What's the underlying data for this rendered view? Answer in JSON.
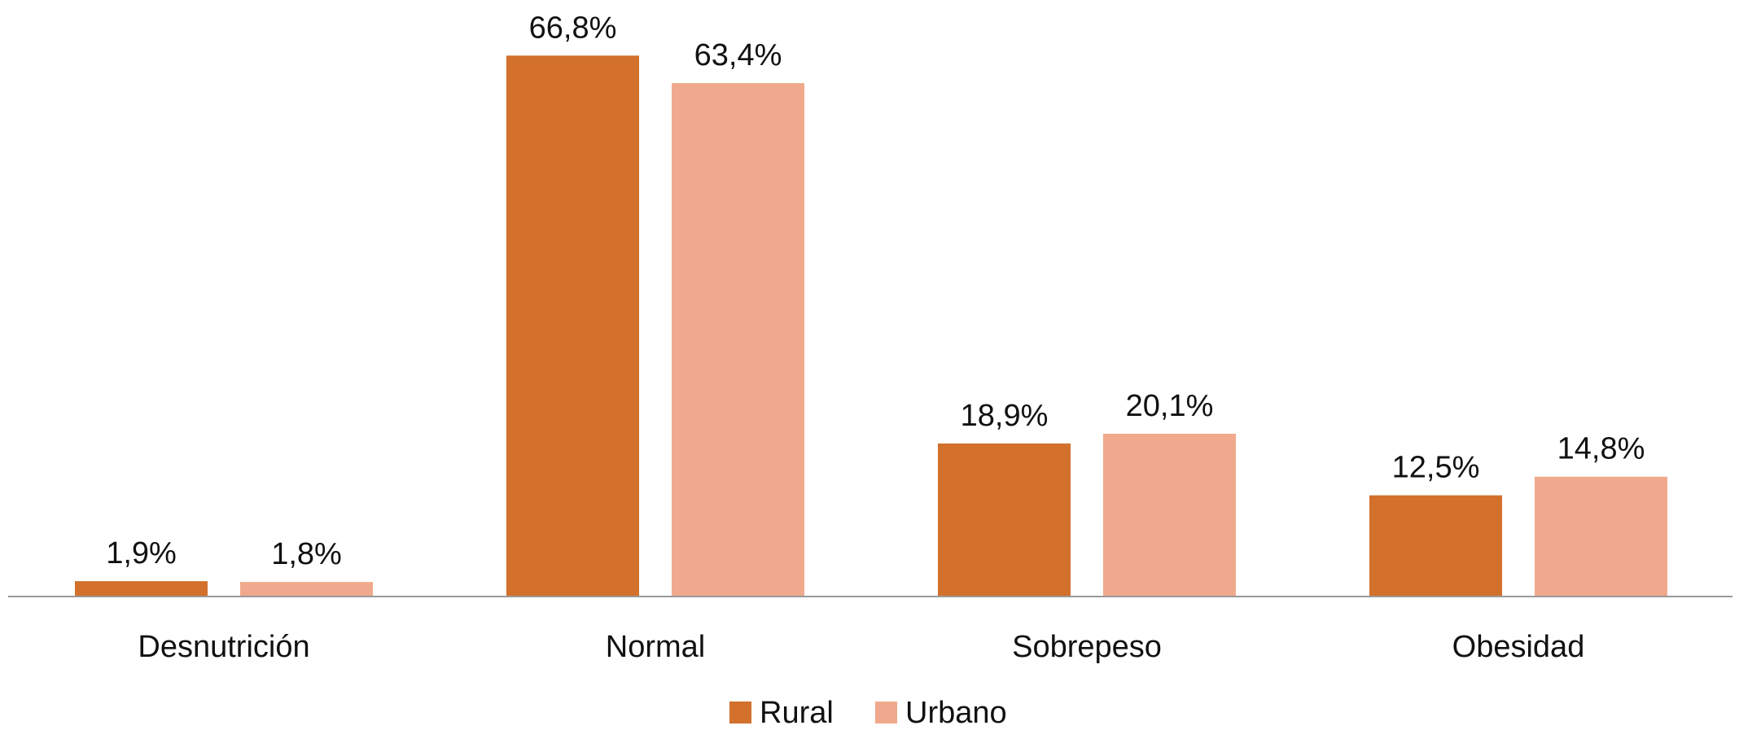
{
  "chart_data": {
    "type": "bar",
    "title": "",
    "xlabel": "",
    "ylabel": "",
    "ylim": [
      0,
      70
    ],
    "grid": false,
    "legend_position": "bottom",
    "categories": [
      "Desnutrición",
      "Normal",
      "Sobrepeso",
      "Obesidad"
    ],
    "series": [
      {
        "name": "Rural",
        "color": "#d2702c",
        "values": [
          1.9,
          66.8,
          18.9,
          12.5
        ],
        "labels": [
          "1,9%",
          "66,8%",
          "18,9%",
          "12,5%"
        ]
      },
      {
        "name": "Urbano",
        "color": "#f0a98c",
        "values": [
          1.8,
          63.4,
          20.1,
          14.8
        ],
        "labels": [
          "1,8%",
          "63,4%",
          "20,1%",
          "14,8%"
        ]
      }
    ]
  }
}
